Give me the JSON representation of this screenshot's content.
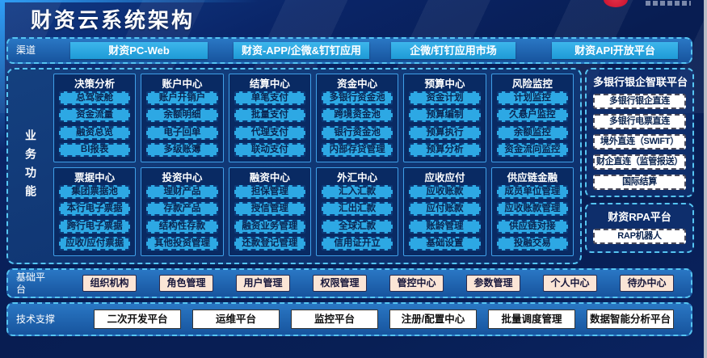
{
  "page": {
    "title": "财资云系统架构"
  },
  "channels": {
    "label": "渠道",
    "items": [
      "财资PC-Web",
      "财资-APP/企微&钉钉应用",
      "企微/钉钉应用市场",
      "财资API开放平台"
    ]
  },
  "business": {
    "label": "业务功能",
    "modules": [
      {
        "title": "决策分析",
        "items": [
          "总驾驶舱",
          "资金流量",
          "融资总览",
          "BI报表"
        ]
      },
      {
        "title": "账户中心",
        "items": [
          "账户开销户",
          "余额明细",
          "电子回单",
          "多级账簿"
        ]
      },
      {
        "title": "结算中心",
        "items": [
          "单笔支付",
          "批量支付",
          "代理支付",
          "联动支付"
        ]
      },
      {
        "title": "资金中心",
        "items": [
          "多银行资金池",
          "跨境资金池",
          "银行资金池",
          "内部存贷管理"
        ]
      },
      {
        "title": "预算中心",
        "items": [
          "资金计划",
          "预算编制",
          "预算执行",
          "预算分析"
        ]
      },
      {
        "title": "风险监控",
        "items": [
          "计划监控",
          "久悬户监控",
          "余额监控",
          "资金流向监控"
        ]
      },
      {
        "title": "票据中心",
        "items": [
          "集团票据池",
          "本行电子票据",
          "跨行电子票据",
          "应收/应付票据"
        ]
      },
      {
        "title": "投资中心",
        "items": [
          "理财产品",
          "存款产品",
          "结构性存款",
          "其他投资管理"
        ]
      },
      {
        "title": "融资中心",
        "items": [
          "担保管理",
          "授信管理",
          "融资业务管理",
          "还款登记管理"
        ]
      },
      {
        "title": "外汇中心",
        "items": [
          "汇入汇款",
          "汇出汇款",
          "全球汇款",
          "信用证开立"
        ]
      },
      {
        "title": "应收应付",
        "items": [
          "应收账款",
          "应付账款",
          "账龄管理",
          "基础设置"
        ]
      },
      {
        "title": "供应链金融",
        "items": [
          "成员单位管理",
          "应收账款管理",
          "供应链对接",
          "投融交易"
        ]
      }
    ]
  },
  "bank_platform": {
    "title": "多银行银企智联平台",
    "items": [
      "多银行银企直连",
      "多银行电票直连",
      "境外直连（SWIFT）",
      "财企直连（监管报送）",
      "国际结算"
    ]
  },
  "rpa_platform": {
    "title": "财资RPA平台",
    "items": [
      "RAP机器人"
    ]
  },
  "base_platform": {
    "label": "基础平台",
    "items": [
      "组织机构",
      "角色管理",
      "用户管理",
      "权限管理",
      "管控中心",
      "参数管理",
      "个人中心",
      "待办中心"
    ]
  },
  "tech_support": {
    "label": "技术支撑",
    "items": [
      "二次开发平台",
      "运维平台",
      "监控平台",
      "注册/配置中心",
      "批量调度管理",
      "数据智能分析平台"
    ]
  },
  "colors": {
    "accent_cyan": "#2da8e4",
    "dashed_border": "#55c4f2",
    "panel_blue": "#17549e",
    "module_navy": "#092a63",
    "peach": "#fbe5d6",
    "navy_text": "#0a2450",
    "logo_red": "#c8102e"
  }
}
